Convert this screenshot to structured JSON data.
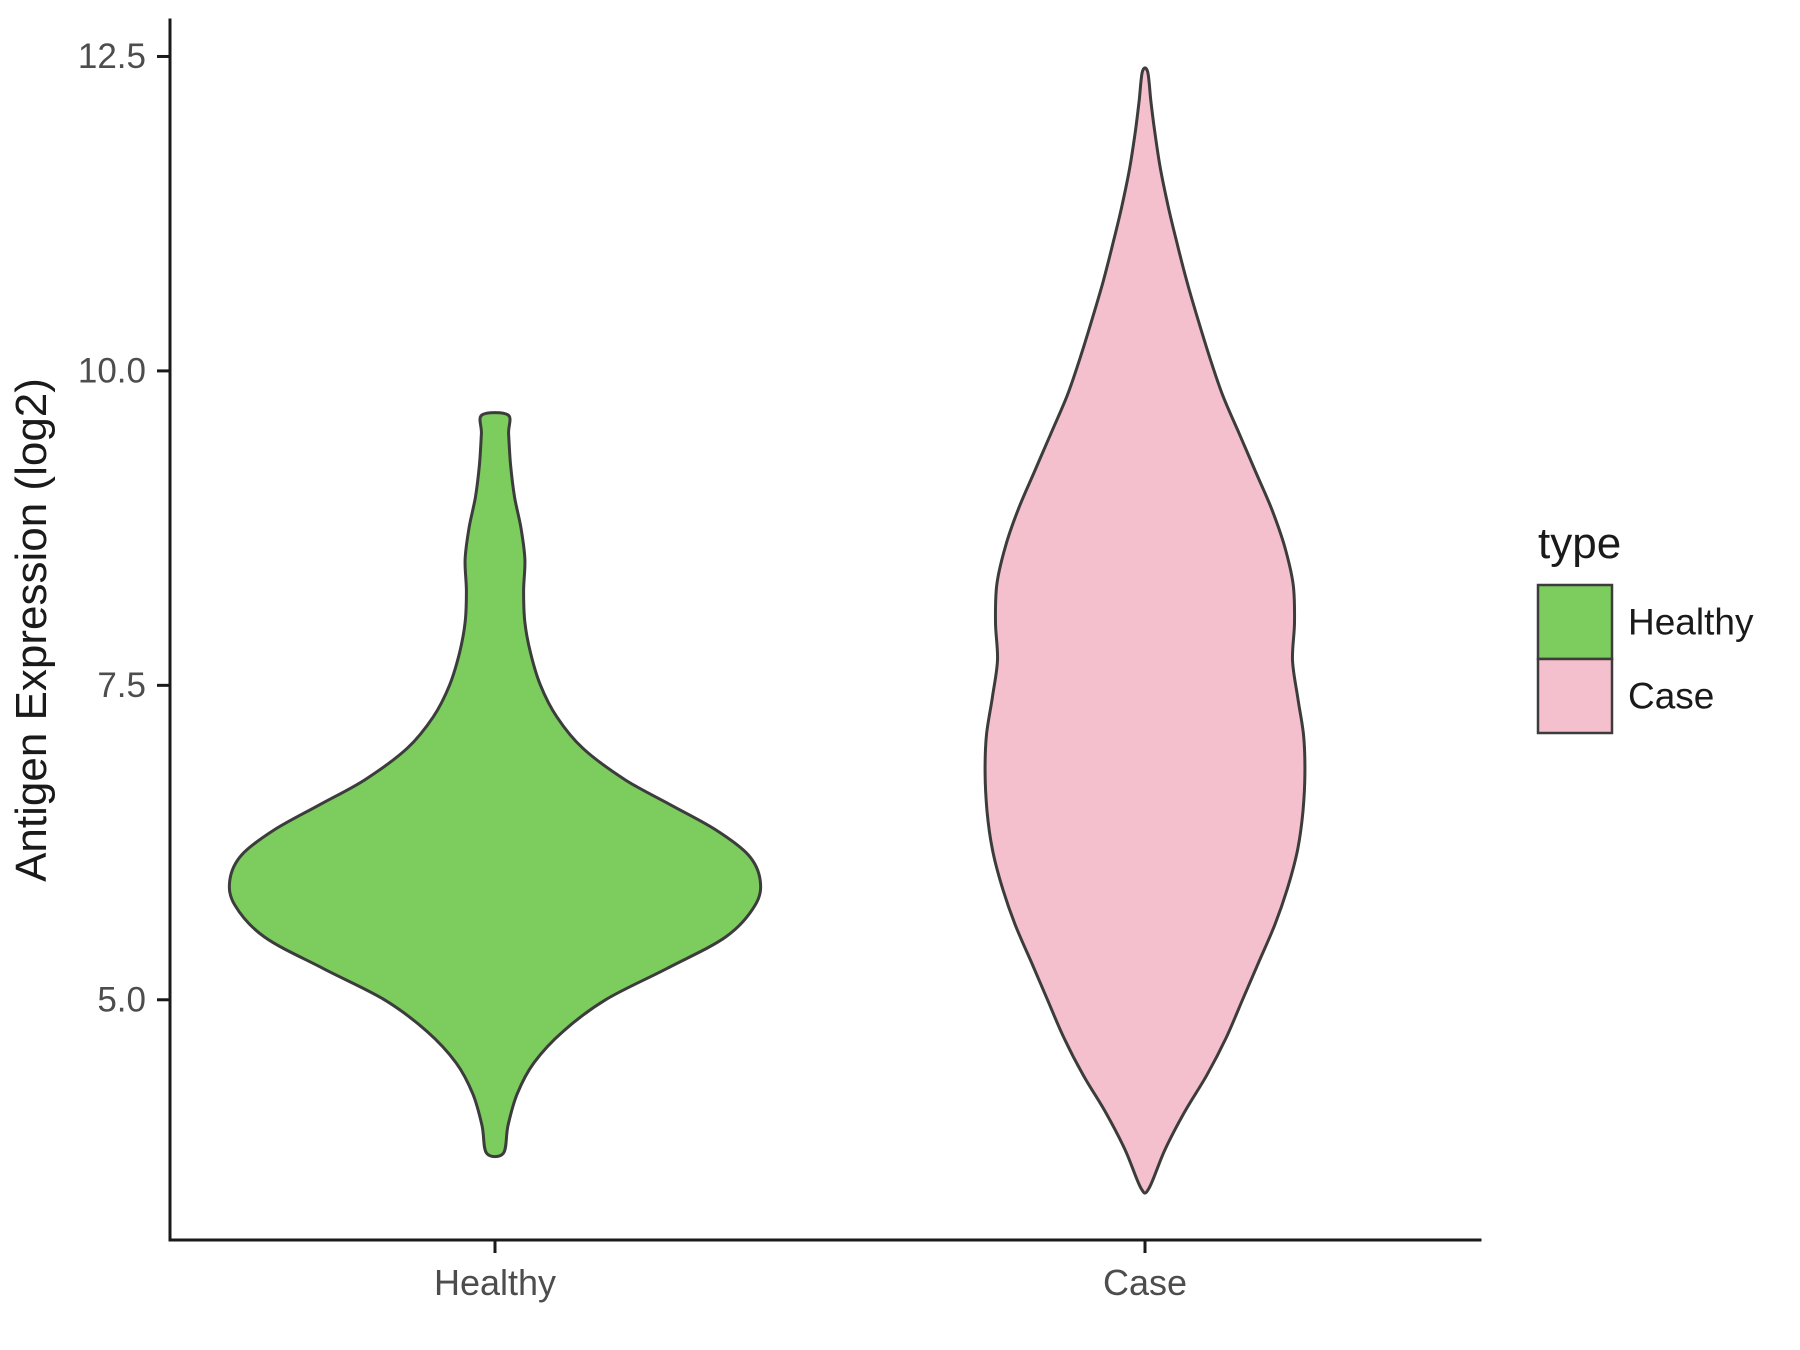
{
  "chart_data": {
    "type": "violin",
    "title": "",
    "xlabel": "",
    "ylabel": "Antigen Expression (log2)",
    "categories": [
      "Healthy",
      "Case"
    ],
    "x_tick_labels": [
      "Healthy",
      "Case"
    ],
    "y_ticks": [
      5.0,
      7.5,
      10.0,
      12.5
    ],
    "y_tick_labels": [
      "5.0",
      "7.5",
      "10.0",
      "12.5"
    ],
    "ylim": [
      3.09,
      12.79
    ],
    "grid": false,
    "background": "#FFFFFF",
    "colors": {
      "axis": "#1A1A1A",
      "outline": "#3C3C3C",
      "tick_label": "#4D4D4D",
      "text": "#1A1A1A"
    },
    "legend": {
      "title": "type",
      "position": "right",
      "entries": [
        {
          "label": "Healthy",
          "color": "#7CCC5E"
        },
        {
          "label": "Case",
          "color": "#F5C0CD"
        }
      ]
    },
    "series": [
      {
        "name": "Healthy",
        "color": "#7CCC5E",
        "summary": {
          "min": 3.78,
          "max": 9.65,
          "mode": 5.95,
          "max_halfwidth_frac_of_slot": 0.408
        },
        "profile": [
          [
            3.78,
            0.013
          ],
          [
            4.0,
            0.02
          ],
          [
            4.25,
            0.034
          ],
          [
            4.5,
            0.06
          ],
          [
            4.75,
            0.105
          ],
          [
            5.0,
            0.17
          ],
          [
            5.25,
            0.265
          ],
          [
            5.5,
            0.355
          ],
          [
            5.75,
            0.4
          ],
          [
            5.95,
            0.408
          ],
          [
            6.15,
            0.39
          ],
          [
            6.35,
            0.34
          ],
          [
            6.55,
            0.27
          ],
          [
            6.75,
            0.2
          ],
          [
            7.0,
            0.135
          ],
          [
            7.25,
            0.095
          ],
          [
            7.5,
            0.07
          ],
          [
            7.75,
            0.055
          ],
          [
            8.0,
            0.046
          ],
          [
            8.25,
            0.044
          ],
          [
            8.5,
            0.046
          ],
          [
            8.75,
            0.04
          ],
          [
            9.0,
            0.03
          ],
          [
            9.25,
            0.024
          ],
          [
            9.5,
            0.021
          ],
          [
            9.65,
            0.02
          ]
        ]
      },
      {
        "name": "Case",
        "color": "#F5C0CD",
        "summary": {
          "min": 3.5,
          "max": 12.38,
          "mode": 6.8,
          "max_halfwidth_frac_of_slot": 0.246
        },
        "profile": [
          [
            3.5,
            0.006
          ],
          [
            3.8,
            0.03
          ],
          [
            4.1,
            0.06
          ],
          [
            4.4,
            0.095
          ],
          [
            4.7,
            0.125
          ],
          [
            5.0,
            0.15
          ],
          [
            5.3,
            0.175
          ],
          [
            5.6,
            0.2
          ],
          [
            5.9,
            0.22
          ],
          [
            6.2,
            0.235
          ],
          [
            6.5,
            0.243
          ],
          [
            6.8,
            0.246
          ],
          [
            7.1,
            0.244
          ],
          [
            7.4,
            0.235
          ],
          [
            7.7,
            0.227
          ],
          [
            8.0,
            0.23
          ],
          [
            8.3,
            0.228
          ],
          [
            8.6,
            0.215
          ],
          [
            8.9,
            0.195
          ],
          [
            9.2,
            0.17
          ],
          [
            9.5,
            0.145
          ],
          [
            9.8,
            0.12
          ],
          [
            10.1,
            0.1
          ],
          [
            10.4,
            0.082
          ],
          [
            10.7,
            0.065
          ],
          [
            11.0,
            0.05
          ],
          [
            11.3,
            0.036
          ],
          [
            11.6,
            0.024
          ],
          [
            11.9,
            0.015
          ],
          [
            12.15,
            0.009
          ],
          [
            12.38,
            0.004
          ]
        ]
      }
    ]
  }
}
